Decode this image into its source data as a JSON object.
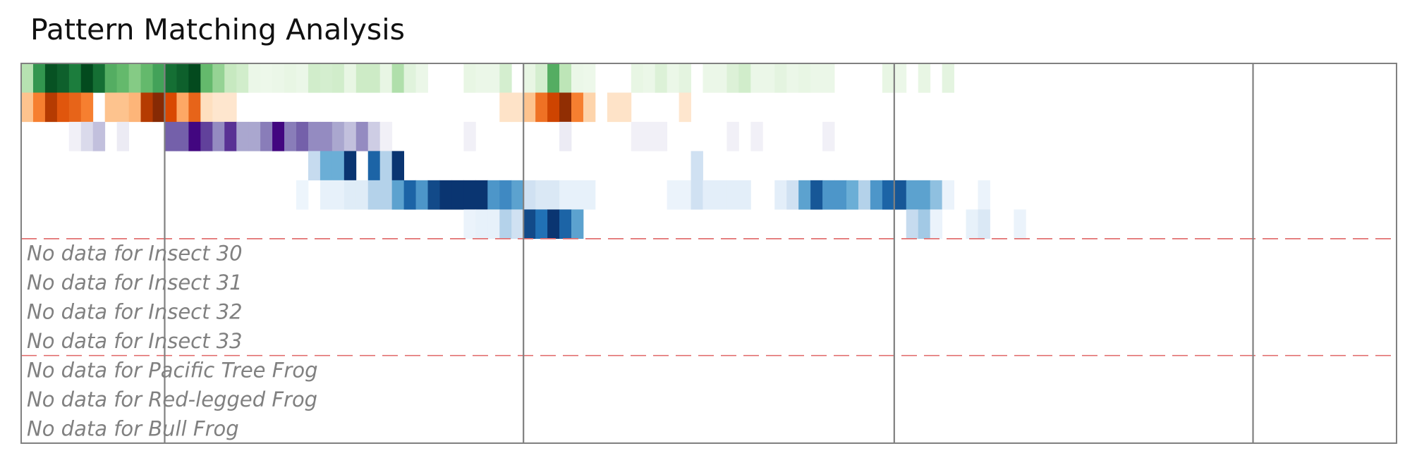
{
  "title": "Pattern Matching Analysis",
  "chart_data": {
    "type": "heatmap",
    "title": "Pattern Matching Analysis",
    "x_range": [
      0,
      115
    ],
    "boundaries_x": [
      12,
      42,
      73,
      103
    ],
    "group_separators_after_row": [
      5,
      9
    ],
    "rows": [
      {
        "cmap": "Greens",
        "cells": [
          [
            0,
            0.3
          ],
          [
            1,
            0.7
          ],
          [
            2,
            0.95
          ],
          [
            3,
            0.9
          ],
          [
            4,
            0.8
          ],
          [
            5,
            0.98
          ],
          [
            6,
            0.85
          ],
          [
            7,
            0.6
          ],
          [
            8,
            0.55
          ],
          [
            9,
            0.45
          ],
          [
            10,
            0.55
          ],
          [
            11,
            0.65
          ],
          [
            12,
            0.85
          ],
          [
            13,
            0.9
          ],
          [
            14,
            0.98
          ],
          [
            15,
            0.55
          ],
          [
            16,
            0.4
          ],
          [
            17,
            0.25
          ],
          [
            18,
            0.2
          ],
          [
            19,
            0.06
          ],
          [
            20,
            0.05
          ],
          [
            21,
            0.06
          ],
          [
            22,
            0.08
          ],
          [
            23,
            0.06
          ],
          [
            24,
            0.2
          ],
          [
            25,
            0.18
          ],
          [
            26,
            0.2
          ],
          [
            27,
            0.08
          ],
          [
            28,
            0.22
          ],
          [
            29,
            0.22
          ],
          [
            30,
            0.08
          ],
          [
            31,
            0.32
          ],
          [
            32,
            0.12
          ],
          [
            33,
            0.06
          ],
          [
            37,
            0.08
          ],
          [
            38,
            0.06
          ],
          [
            39,
            0.06
          ],
          [
            40,
            0.18
          ],
          [
            42,
            0.08
          ],
          [
            43,
            0.18
          ],
          [
            44,
            0.6
          ],
          [
            45,
            0.28
          ],
          [
            46,
            0.06
          ],
          [
            47,
            0.05
          ],
          [
            51,
            0.08
          ],
          [
            52,
            0.06
          ],
          [
            53,
            0.14
          ],
          [
            54,
            0.06
          ],
          [
            55,
            0.1
          ],
          [
            57,
            0.06
          ],
          [
            58,
            0.06
          ],
          [
            59,
            0.14
          ],
          [
            60,
            0.2
          ],
          [
            61,
            0.06
          ],
          [
            62,
            0.06
          ],
          [
            63,
            0.1
          ],
          [
            64,
            0.06
          ],
          [
            65,
            0.08
          ],
          [
            66,
            0.06
          ],
          [
            67,
            0.06
          ],
          [
            72,
            0.08
          ],
          [
            73,
            0.06
          ],
          [
            75,
            0.08
          ],
          [
            77,
            0.1
          ]
        ]
      },
      {
        "cmap": "Oranges",
        "cells": [
          [
            0,
            0.3
          ],
          [
            1,
            0.55
          ],
          [
            2,
            0.85
          ],
          [
            3,
            0.7
          ],
          [
            4,
            0.65
          ],
          [
            5,
            0.55
          ],
          [
            7,
            0.3
          ],
          [
            8,
            0.3
          ],
          [
            9,
            0.35
          ],
          [
            10,
            0.85
          ],
          [
            11,
            0.98
          ],
          [
            12,
            0.75
          ],
          [
            13,
            0.4
          ],
          [
            14,
            0.65
          ],
          [
            15,
            0.15
          ],
          [
            16,
            0.1
          ],
          [
            17,
            0.1
          ],
          [
            40,
            0.12
          ],
          [
            41,
            0.12
          ],
          [
            42,
            0.3
          ],
          [
            43,
            0.6
          ],
          [
            44,
            0.78
          ],
          [
            45,
            0.95
          ],
          [
            46,
            0.55
          ],
          [
            47,
            0.22
          ],
          [
            49,
            0.12
          ],
          [
            50,
            0.12
          ],
          [
            55,
            0.1
          ]
        ]
      },
      {
        "cmap": "Purples",
        "cells": [
          [
            4,
            0.08
          ],
          [
            5,
            0.25
          ],
          [
            6,
            0.35
          ],
          [
            8,
            0.12
          ],
          [
            12,
            0.7
          ],
          [
            13,
            0.7
          ],
          [
            14,
            0.98
          ],
          [
            15,
            0.8
          ],
          [
            16,
            0.55
          ],
          [
            17,
            0.85
          ],
          [
            18,
            0.45
          ],
          [
            19,
            0.45
          ],
          [
            20,
            0.6
          ],
          [
            21,
            0.98
          ],
          [
            22,
            0.6
          ],
          [
            23,
            0.7
          ],
          [
            24,
            0.55
          ],
          [
            25,
            0.55
          ],
          [
            26,
            0.45
          ],
          [
            27,
            0.35
          ],
          [
            28,
            0.55
          ],
          [
            29,
            0.3
          ],
          [
            30,
            0.08
          ],
          [
            37,
            0.08
          ],
          [
            45,
            0.12
          ],
          [
            51,
            0.08
          ],
          [
            52,
            0.08
          ],
          [
            53,
            0.08
          ],
          [
            59,
            0.08
          ],
          [
            61,
            0.08
          ],
          [
            67,
            0.08
          ]
        ]
      },
      {
        "cmap": "Blues",
        "cells": [
          [
            24,
            0.25
          ],
          [
            25,
            0.5
          ],
          [
            26,
            0.5
          ],
          [
            27,
            0.98
          ],
          [
            29,
            0.8
          ],
          [
            30,
            0.3
          ],
          [
            31,
            0.98
          ],
          [
            56,
            0.2
          ]
        ]
      },
      {
        "cmap": "Blues",
        "cells": [
          [
            23,
            0.05
          ],
          [
            25,
            0.08
          ],
          [
            26,
            0.08
          ],
          [
            27,
            0.12
          ],
          [
            28,
            0.12
          ],
          [
            29,
            0.3
          ],
          [
            30,
            0.3
          ],
          [
            31,
            0.55
          ],
          [
            32,
            0.8
          ],
          [
            33,
            0.6
          ],
          [
            34,
            0.9
          ],
          [
            35,
            0.98
          ],
          [
            36,
            0.98
          ],
          [
            37,
            0.98
          ],
          [
            38,
            0.98
          ],
          [
            39,
            0.6
          ],
          [
            40,
            0.65
          ],
          [
            41,
            0.55
          ],
          [
            42,
            0.2
          ],
          [
            43,
            0.15
          ],
          [
            44,
            0.15
          ],
          [
            45,
            0.08
          ],
          [
            46,
            0.08
          ],
          [
            47,
            0.08
          ],
          [
            54,
            0.06
          ],
          [
            55,
            0.06
          ],
          [
            56,
            0.2
          ],
          [
            57,
            0.1
          ],
          [
            58,
            0.1
          ],
          [
            59,
            0.1
          ],
          [
            60,
            0.1
          ],
          [
            63,
            0.1
          ],
          [
            64,
            0.2
          ],
          [
            65,
            0.55
          ],
          [
            66,
            0.85
          ],
          [
            67,
            0.6
          ],
          [
            68,
            0.6
          ],
          [
            69,
            0.5
          ],
          [
            70,
            0.3
          ],
          [
            71,
            0.6
          ],
          [
            72,
            0.8
          ],
          [
            73,
            0.85
          ],
          [
            74,
            0.55
          ],
          [
            75,
            0.55
          ],
          [
            76,
            0.4
          ],
          [
            77,
            0.06
          ],
          [
            80,
            0.06
          ]
        ]
      },
      {
        "cmap": "Blues",
        "cells": [
          [
            37,
            0.06
          ],
          [
            38,
            0.08
          ],
          [
            39,
            0.08
          ],
          [
            40,
            0.3
          ],
          [
            41,
            0.2
          ],
          [
            42,
            0.9
          ],
          [
            43,
            0.75
          ],
          [
            44,
            0.98
          ],
          [
            45,
            0.8
          ],
          [
            46,
            0.55
          ],
          [
            74,
            0.25
          ],
          [
            75,
            0.35
          ],
          [
            76,
            0.06
          ],
          [
            79,
            0.08
          ],
          [
            80,
            0.15
          ],
          [
            83,
            0.06
          ]
        ]
      },
      {
        "text": "No data for Insect 30"
      },
      {
        "text": "No data for Insect 31"
      },
      {
        "text": "No data for Insect 32"
      },
      {
        "text": "No data for Insect 33"
      },
      {
        "text": "No data for Pacific Tree Frog"
      },
      {
        "text": "No data for Red-legged Frog"
      },
      {
        "text": "No data for Bull Frog"
      }
    ],
    "colors": {
      "frame": "#808080",
      "separator": "#e06666",
      "no_data_text": "#808080"
    }
  }
}
